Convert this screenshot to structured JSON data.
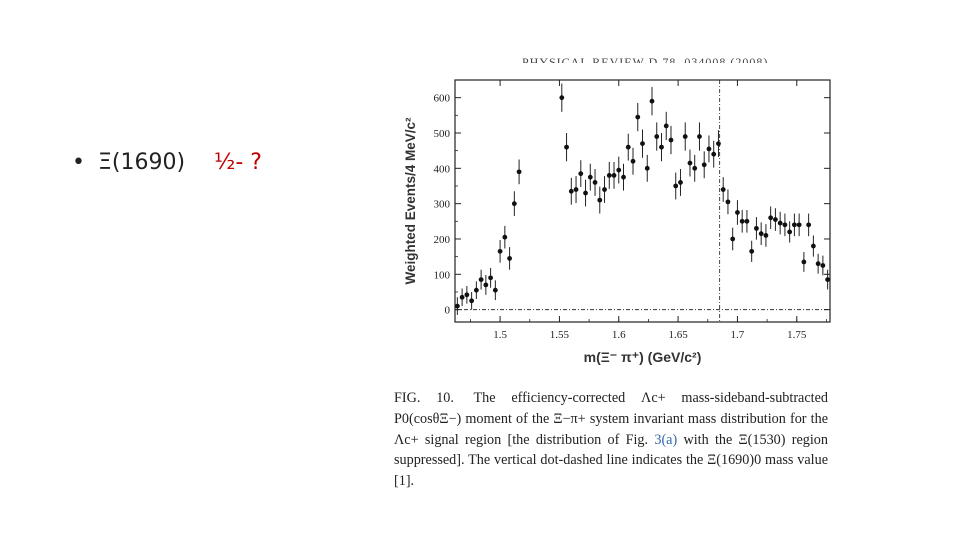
{
  "slide": {
    "bullet": "•",
    "particle": "Ξ(1690)",
    "spin_parity": "½- ?",
    "accent_color": "#c00000"
  },
  "figure": {
    "header_fragment": "PHYSICAL REVIEW D 78, 034008 (2008)",
    "caption_label": "FIG. 10.",
    "caption_part1": "The efficiency-corrected Λc+ mass-sideband-subtracted P0(cosθΞ−) moment of the Ξ−π+ system invariant mass distribution for the Λc+ signal region [the distribution of Fig.",
    "caption_ref": "3(a)",
    "caption_part2": "with the Ξ(1530) region suppressed]. The vertical dot-dashed line indicates the Ξ(1690)0 mass value [1]."
  },
  "chart_data": {
    "type": "scatter",
    "title": "",
    "xlabel": "m(Ξ⁻ π⁺)  (GeV/c²)",
    "ylabel": "Weighted Events/4 MeV/c²",
    "xlim": [
      1.462,
      1.778
    ],
    "ylim": [
      -35,
      650
    ],
    "x_ticks": [
      1.5,
      1.55,
      1.6,
      1.65,
      1.7,
      1.75
    ],
    "x_tick_labels": [
      "1.5",
      "1.55",
      "1.6",
      "1.65",
      "1.7",
      "1.75"
    ],
    "y_ticks": [
      0,
      100,
      200,
      300,
      400,
      500,
      600
    ],
    "y_tick_labels": [
      "0",
      "100",
      "200",
      "300",
      "400",
      "500",
      "600"
    ],
    "vertical_line_x": 1.685,
    "horizontal_line_y": 0,
    "series": [
      {
        "name": "data",
        "points": [
          {
            "x": 1.464,
            "y": 10,
            "err": 25
          },
          {
            "x": 1.468,
            "y": 35,
            "err": 25
          },
          {
            "x": 1.472,
            "y": 42,
            "err": 25
          },
          {
            "x": 1.476,
            "y": 25,
            "err": 25
          },
          {
            "x": 1.48,
            "y": 55,
            "err": 25
          },
          {
            "x": 1.484,
            "y": 85,
            "err": 28
          },
          {
            "x": 1.488,
            "y": 70,
            "err": 28
          },
          {
            "x": 1.492,
            "y": 90,
            "err": 28
          },
          {
            "x": 1.496,
            "y": 55,
            "err": 28
          },
          {
            "x": 1.5,
            "y": 165,
            "err": 32
          },
          {
            "x": 1.504,
            "y": 205,
            "err": 32
          },
          {
            "x": 1.508,
            "y": 145,
            "err": 32
          },
          {
            "x": 1.512,
            "y": 300,
            "err": 35
          },
          {
            "x": 1.516,
            "y": 390,
            "err": 35
          },
          {
            "x": 1.552,
            "y": 600,
            "err": 40
          },
          {
            "x": 1.556,
            "y": 460,
            "err": 40
          },
          {
            "x": 1.56,
            "y": 335,
            "err": 38
          },
          {
            "x": 1.564,
            "y": 340,
            "err": 38
          },
          {
            "x": 1.568,
            "y": 385,
            "err": 38
          },
          {
            "x": 1.572,
            "y": 330,
            "err": 38
          },
          {
            "x": 1.576,
            "y": 375,
            "err": 38
          },
          {
            "x": 1.58,
            "y": 360,
            "err": 38
          },
          {
            "x": 1.584,
            "y": 310,
            "err": 38
          },
          {
            "x": 1.588,
            "y": 340,
            "err": 38
          },
          {
            "x": 1.592,
            "y": 380,
            "err": 38
          },
          {
            "x": 1.596,
            "y": 380,
            "err": 38
          },
          {
            "x": 1.6,
            "y": 395,
            "err": 38
          },
          {
            "x": 1.604,
            "y": 375,
            "err": 38
          },
          {
            "x": 1.608,
            "y": 460,
            "err": 38
          },
          {
            "x": 1.612,
            "y": 420,
            "err": 38
          },
          {
            "x": 1.616,
            "y": 545,
            "err": 40
          },
          {
            "x": 1.62,
            "y": 470,
            "err": 40
          },
          {
            "x": 1.624,
            "y": 400,
            "err": 38
          },
          {
            "x": 1.628,
            "y": 590,
            "err": 40
          },
          {
            "x": 1.632,
            "y": 490,
            "err": 40
          },
          {
            "x": 1.636,
            "y": 460,
            "err": 40
          },
          {
            "x": 1.64,
            "y": 520,
            "err": 40
          },
          {
            "x": 1.644,
            "y": 480,
            "err": 40
          },
          {
            "x": 1.648,
            "y": 350,
            "err": 38
          },
          {
            "x": 1.652,
            "y": 360,
            "err": 38
          },
          {
            "x": 1.656,
            "y": 490,
            "err": 40
          },
          {
            "x": 1.66,
            "y": 415,
            "err": 38
          },
          {
            "x": 1.664,
            "y": 400,
            "err": 38
          },
          {
            "x": 1.668,
            "y": 490,
            "err": 40
          },
          {
            "x": 1.672,
            "y": 410,
            "err": 38
          },
          {
            "x": 1.676,
            "y": 455,
            "err": 38
          },
          {
            "x": 1.68,
            "y": 440,
            "err": 38
          },
          {
            "x": 1.684,
            "y": 470,
            "err": 38
          },
          {
            "x": 1.688,
            "y": 340,
            "err": 35
          },
          {
            "x": 1.692,
            "y": 305,
            "err": 35
          },
          {
            "x": 1.696,
            "y": 200,
            "err": 32
          },
          {
            "x": 1.7,
            "y": 275,
            "err": 35
          },
          {
            "x": 1.704,
            "y": 250,
            "err": 32
          },
          {
            "x": 1.708,
            "y": 250,
            "err": 32
          },
          {
            "x": 1.712,
            "y": 165,
            "err": 30
          },
          {
            "x": 1.716,
            "y": 230,
            "err": 32
          },
          {
            "x": 1.72,
            "y": 215,
            "err": 32
          },
          {
            "x": 1.724,
            "y": 210,
            "err": 32
          },
          {
            "x": 1.728,
            "y": 260,
            "err": 32
          },
          {
            "x": 1.732,
            "y": 255,
            "err": 32
          },
          {
            "x": 1.736,
            "y": 245,
            "err": 32
          },
          {
            "x": 1.74,
            "y": 240,
            "err": 32
          },
          {
            "x": 1.744,
            "y": 220,
            "err": 30
          },
          {
            "x": 1.748,
            "y": 240,
            "err": 32
          },
          {
            "x": 1.752,
            "y": 240,
            "err": 32
          },
          {
            "x": 1.756,
            "y": 135,
            "err": 28
          },
          {
            "x": 1.76,
            "y": 240,
            "err": 32
          },
          {
            "x": 1.764,
            "y": 180,
            "err": 30
          },
          {
            "x": 1.768,
            "y": 130,
            "err": 28
          },
          {
            "x": 1.772,
            "y": 125,
            "err": 28
          },
          {
            "x": 1.776,
            "y": 85,
            "err": 28
          }
        ]
      }
    ]
  }
}
